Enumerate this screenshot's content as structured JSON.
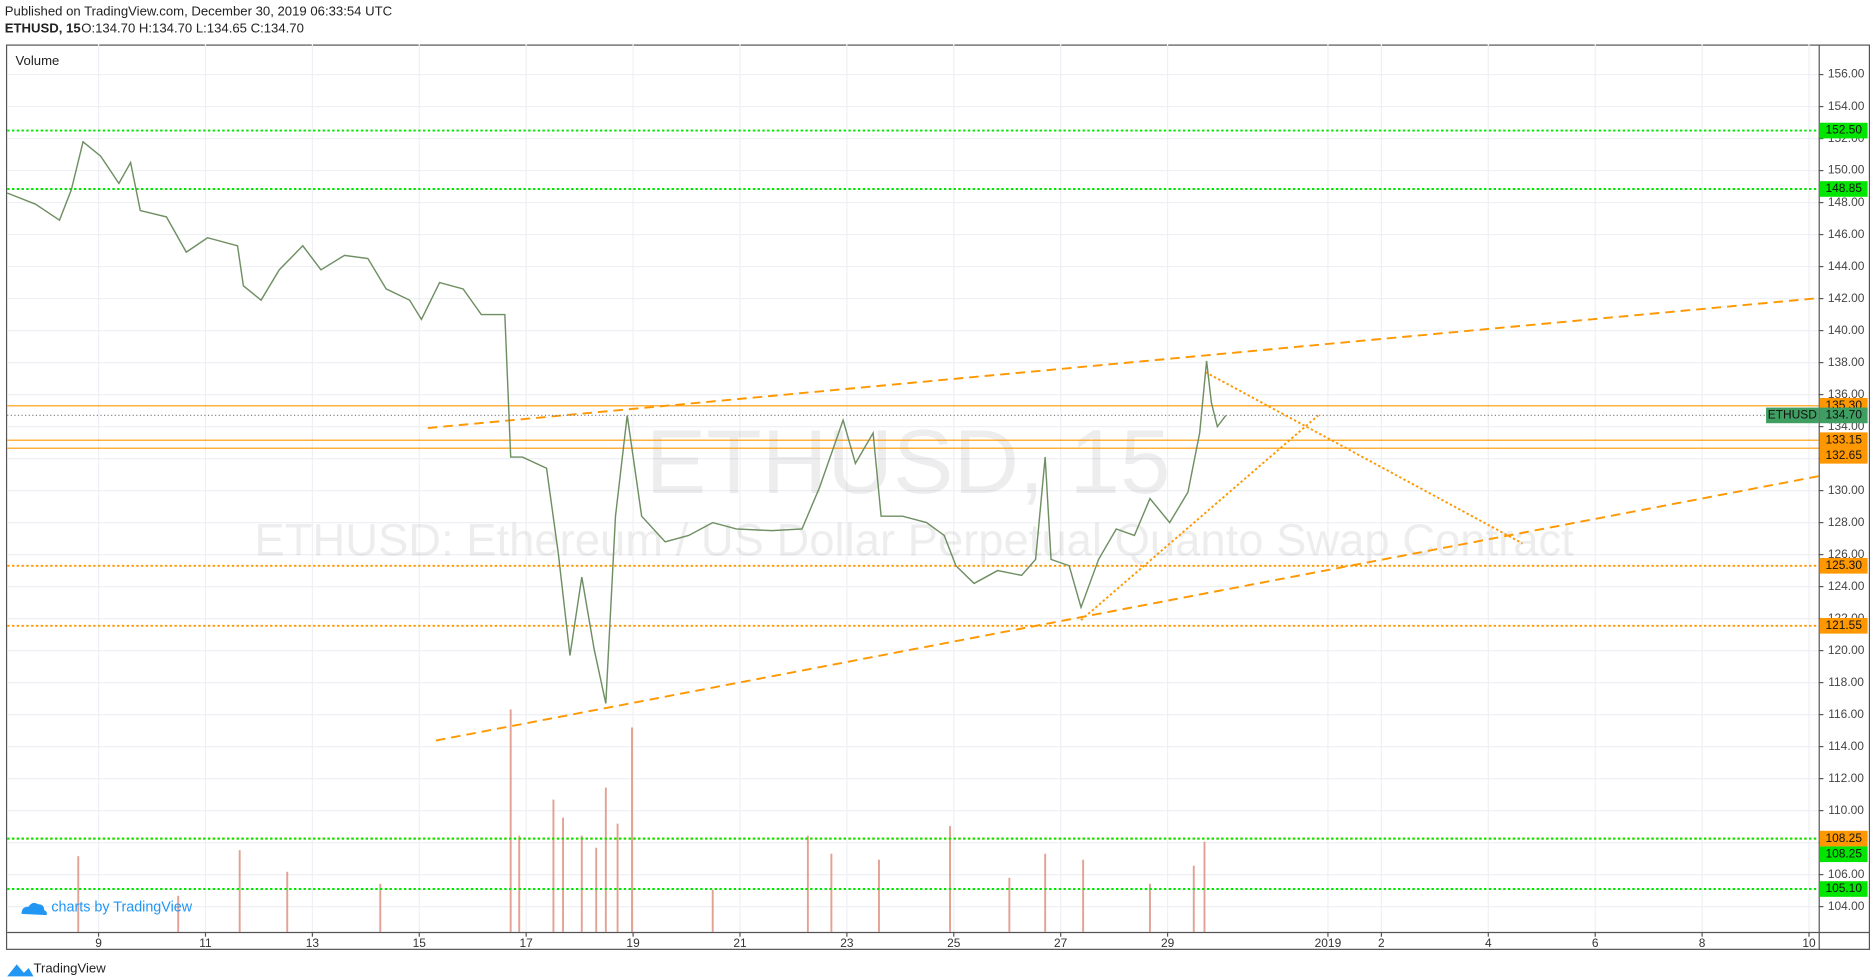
{
  "header": {
    "published": "Published on TradingView.com, December 30, 2019 06:33:54 UTC",
    "symbol": "ETHUSD, 15",
    "ohlc": "O:134.70 H:134.70 L:134.65 C:134.70"
  },
  "branding": "charts by TradingView",
  "footer": "TradingView",
  "chart_data": {
    "type": "line",
    "pane_label": "Volume",
    "watermark": "ETHUSD, 15",
    "watermark_subtitle": "ETHUSD: Ethereum / US Dollar Perpetual Quanto Swap Contract",
    "xlim": [
      7.29,
      41.18
    ],
    "ylim": [
      102.42,
      157.88
    ],
    "grid": true,
    "xticks": [
      9,
      11,
      13,
      15,
      17,
      19,
      21,
      23,
      25,
      27,
      29,
      {
        "value": 32,
        "label": "2019"
      },
      {
        "value": 33,
        "label": "2"
      },
      {
        "value": 35,
        "label": "4"
      },
      {
        "value": 37,
        "label": "6"
      },
      {
        "value": 39,
        "label": "8"
      },
      {
        "value": 41,
        "label": "10"
      }
    ],
    "yticks": [
      {
        "value": 104,
        "label": "104.00"
      },
      {
        "value": 106,
        "label": "106.00"
      },
      {
        "value": 108,
        "label": "108.00"
      },
      {
        "value": 110,
        "label": "110.00"
      },
      {
        "value": 112,
        "label": "112.00"
      },
      {
        "value": 114,
        "label": "114.00"
      },
      {
        "value": 116,
        "label": "116.00"
      },
      {
        "value": 118,
        "label": "118.00"
      },
      {
        "value": 120,
        "label": "120.00"
      },
      {
        "value": 122,
        "label": "122.00"
      },
      {
        "value": 124,
        "label": "124.00"
      },
      {
        "value": 126,
        "label": "126.00"
      },
      {
        "value": 128,
        "label": "128.00"
      },
      {
        "value": 130,
        "label": "130.00"
      },
      {
        "value": 132,
        "label": "132.00"
      },
      {
        "value": 134,
        "label": "134.00"
      },
      {
        "value": 136,
        "label": "136.00"
      },
      {
        "value": 138,
        "label": "138.00"
      },
      {
        "value": 140,
        "label": "140.00"
      },
      {
        "value": 142,
        "label": "142.00"
      },
      {
        "value": 144,
        "label": "144.00"
      },
      {
        "value": 146,
        "label": "146.00"
      },
      {
        "value": 148,
        "label": "148.00"
      },
      {
        "value": 150,
        "label": "150.00"
      },
      {
        "value": 152,
        "label": "152.00"
      },
      {
        "value": 154,
        "label": "154.00"
      },
      {
        "value": 156,
        "label": "156.00"
      }
    ],
    "series": [
      {
        "name": "ETHUSD",
        "color": "#6f8f63",
        "x": [
          7.29,
          7.82,
          8.27,
          8.49,
          8.71,
          9.04,
          9.38,
          9.6,
          9.78,
          10.27,
          10.64,
          11.04,
          11.6,
          11.71,
          12.04,
          12.38,
          12.82,
          13.16,
          13.6,
          14.04,
          14.38,
          14.82,
          15.04,
          15.38,
          15.82,
          16.16,
          16.6,
          16.71,
          16.93,
          17.38,
          17.6,
          17.82,
          18.04,
          18.27,
          18.49,
          18.67,
          18.89,
          19.16,
          19.6,
          20.04,
          20.49,
          20.93,
          21.6,
          22.16,
          22.49,
          22.93,
          23.16,
          23.49,
          23.64,
          24.04,
          24.49,
          24.82,
          25.04,
          25.38,
          25.82,
          26.27,
          26.53,
          26.71,
          26.82,
          27.16,
          27.38,
          27.71,
          28.04,
          28.38,
          28.67,
          29.04,
          29.38,
          29.6,
          29.73,
          29.82,
          29.93,
          30.09
        ],
        "values": [
          148.6,
          147.9,
          146.9,
          148.8,
          151.8,
          150.9,
          149.2,
          150.5,
          147.5,
          147.1,
          144.9,
          145.8,
          145.3,
          142.8,
          141.9,
          143.8,
          145.3,
          143.8,
          144.7,
          144.5,
          142.6,
          141.9,
          140.7,
          143.0,
          142.6,
          141.0,
          141.0,
          132.1,
          132.1,
          131.4,
          126.1,
          119.7,
          124.6,
          120.1,
          116.7,
          128.4,
          134.7,
          128.4,
          126.8,
          127.2,
          128.0,
          127.6,
          127.5,
          127.6,
          130.2,
          134.4,
          131.7,
          133.6,
          128.4,
          128.4,
          128.0,
          127.2,
          125.3,
          124.2,
          125.0,
          124.7,
          125.7,
          132.1,
          125.7,
          125.3,
          122.7,
          125.7,
          127.6,
          127.2,
          129.5,
          128.0,
          129.9,
          133.6,
          138.1,
          135.5,
          134.0,
          134.7
        ]
      }
    ],
    "last_price": {
      "value": 134.7,
      "label": "134.70",
      "color": "#3f9e61"
    },
    "volume": {
      "color": "#d9826f",
      "x": [
        8.62,
        10.49,
        11.64,
        12.53,
        14.27,
        16.71,
        16.87,
        17.51,
        17.69,
        18.04,
        18.31,
        18.49,
        18.71,
        18.98,
        20.49,
        22.27,
        22.71,
        23.6,
        24.93,
        26.04,
        26.71,
        27.42,
        28.67,
        29.49,
        29.69
      ],
      "values": [
        63,
        30,
        68,
        50,
        40,
        185,
        80,
        110,
        95,
        80,
        70,
        120,
        90,
        170,
        35,
        80,
        65,
        60,
        88,
        45,
        65,
        60,
        40,
        55,
        75
      ]
    },
    "levels": [
      {
        "value": 152.5,
        "label": "152.50",
        "color": "#00e600",
        "style": "dotted"
      },
      {
        "value": 148.85,
        "label": "148.85",
        "color": "#00e600",
        "style": "dotted"
      },
      {
        "value": 135.3,
        "label": "135.30",
        "color": "#ff9800",
        "style": "solid"
      },
      {
        "value": 133.15,
        "label": "133.15",
        "color": "#ff9800",
        "style": "solid"
      },
      {
        "value": 132.65,
        "label": "132.65",
        "color": "#ff9800",
        "style": "solid"
      },
      {
        "value": 125.3,
        "label": "125.30",
        "color": "#ff9800",
        "style": "dotted"
      },
      {
        "value": 121.55,
        "label": "121.55",
        "color": "#ff9800",
        "style": "dotted"
      },
      {
        "value": 108.25,
        "label": "108.25",
        "color": "#ff9800",
        "style": "dotted"
      },
      {
        "value": 108.25,
        "label": "108.25",
        "color": "#00e600",
        "style": "dotted"
      },
      {
        "value": 105.1,
        "label": "105.10",
        "color": "#00e600",
        "style": "dotted"
      }
    ],
    "trendlines": [
      {
        "x": [
          15.16,
          41.18
        ],
        "y": [
          133.91,
          142.03
        ],
        "color": "#ff9800",
        "style": "dashed"
      },
      {
        "x": [
          15.31,
          41.18
        ],
        "y": [
          114.38,
          130.9
        ],
        "color": "#ff9800",
        "style": "dashed"
      },
      {
        "x": [
          29.71,
          35.64
        ],
        "y": [
          137.4,
          126.7
        ],
        "color": "#ff9800",
        "style": "dotted"
      },
      {
        "x": [
          27.38,
          31.82
        ],
        "y": [
          121.9,
          134.7
        ],
        "color": "#ff9800",
        "style": "dotted"
      }
    ]
  }
}
